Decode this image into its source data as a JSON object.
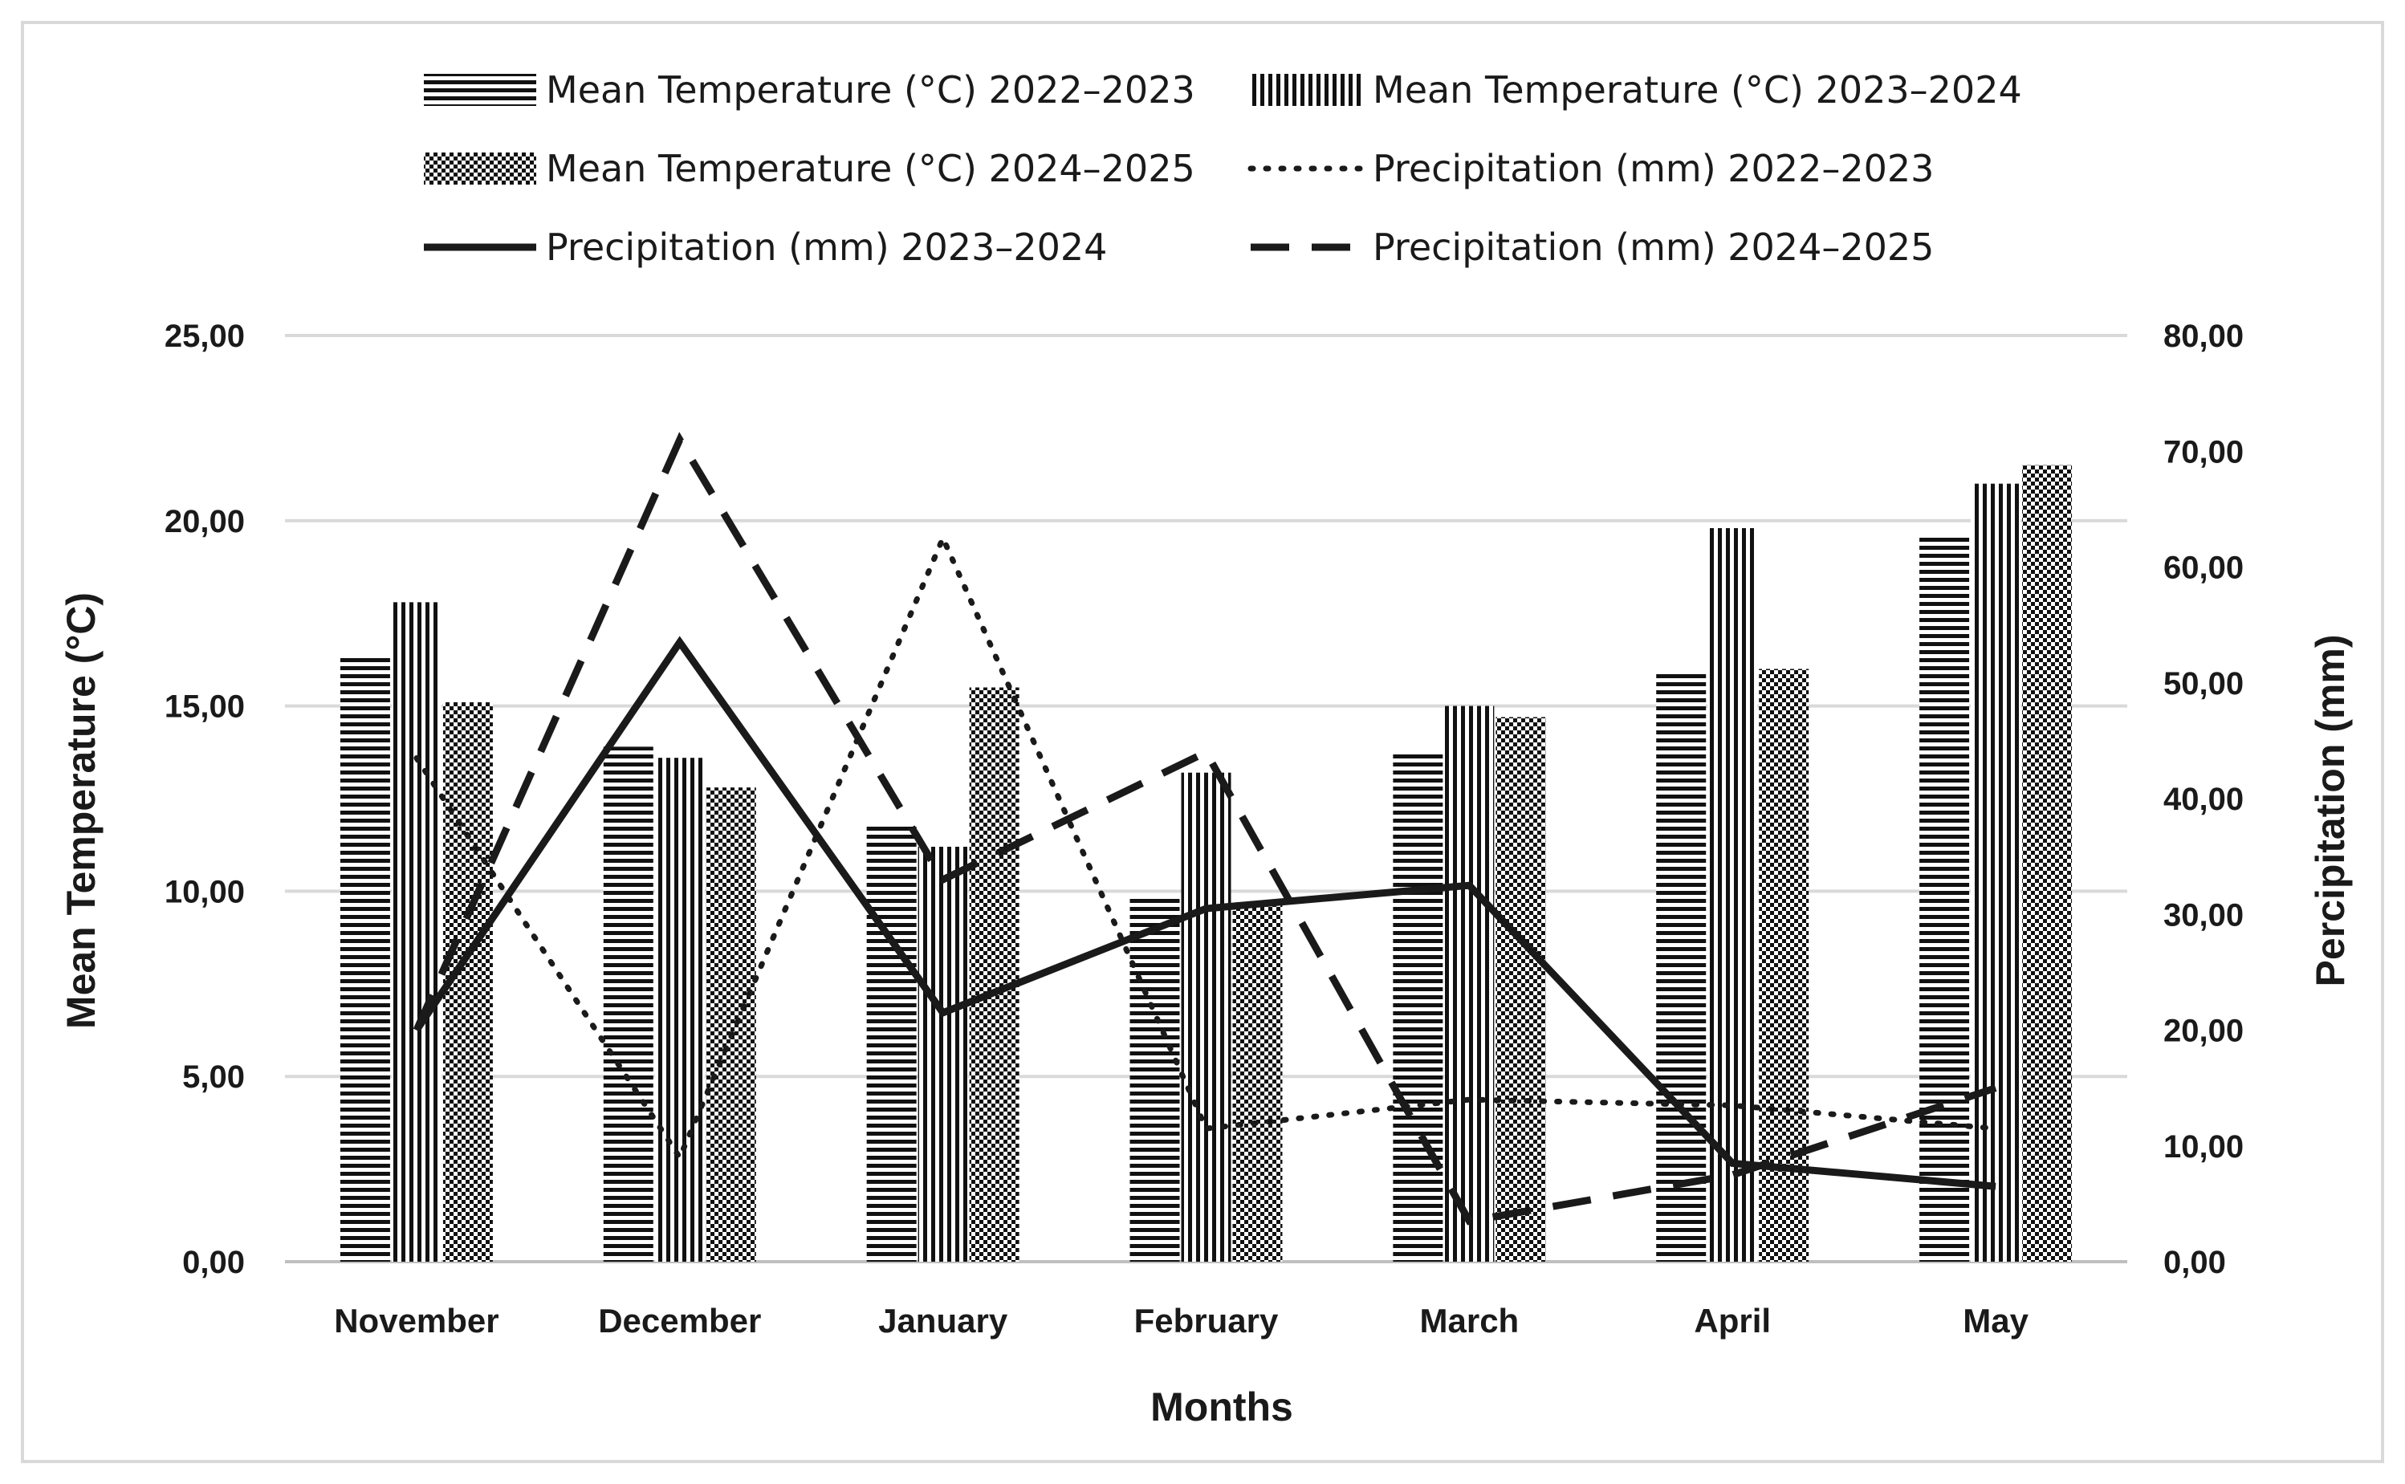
{
  "chart_data": {
    "type": "bar+line",
    "categories": [
      "November",
      "December",
      "January",
      "February",
      "March",
      "April",
      "May"
    ],
    "xlabel": "Months",
    "ylabel_left": "Mean Temperature (°C)",
    "ylabel_right": "Percipitation (mm)",
    "ylim_left": [
      0,
      25
    ],
    "ylim_right": [
      0,
      80
    ],
    "yticks_left": [
      "0,00",
      "5,00",
      "10,00",
      "15,00",
      "20,00",
      "25,00"
    ],
    "yticks_right": [
      "0,00",
      "10,00",
      "20,00",
      "30,00",
      "40,00",
      "50,00",
      "60,00",
      "70,00",
      "80,00"
    ],
    "grid": true,
    "legend_position": "top",
    "bar_series": [
      {
        "name": "Mean Temperature (°C) 2022–2023",
        "pattern": "horizontal",
        "values": [
          16.3,
          13.9,
          11.8,
          9.8,
          13.7,
          15.9,
          19.6
        ]
      },
      {
        "name": "Mean Temperature (°C) 2023–2024",
        "pattern": "vertical",
        "values": [
          17.8,
          13.6,
          11.2,
          13.2,
          15.0,
          19.8,
          21.0
        ]
      },
      {
        "name": "Mean Temperature (°C) 2024–2025",
        "pattern": "checker",
        "values": [
          15.1,
          12.8,
          15.5,
          9.7,
          14.7,
          16.0,
          21.5
        ]
      }
    ],
    "line_series": [
      {
        "name": "Precipitation (mm) 2022–2023",
        "style": "dotted",
        "values": [
          43.5,
          9.0,
          62.5,
          11.5,
          14.0,
          13.5,
          11.5
        ]
      },
      {
        "name": "Precipitation (mm) 2023–2024",
        "style": "solid",
        "values": [
          20.0,
          53.5,
          21.5,
          30.5,
          32.5,
          8.5,
          6.5
        ]
      },
      {
        "name": "Precipitation (mm) 2024–2025",
        "style": "dashed",
        "values": [
          20.0,
          71.0,
          33.0,
          44.0,
          3.5,
          7.5,
          15.0
        ]
      }
    ]
  }
}
